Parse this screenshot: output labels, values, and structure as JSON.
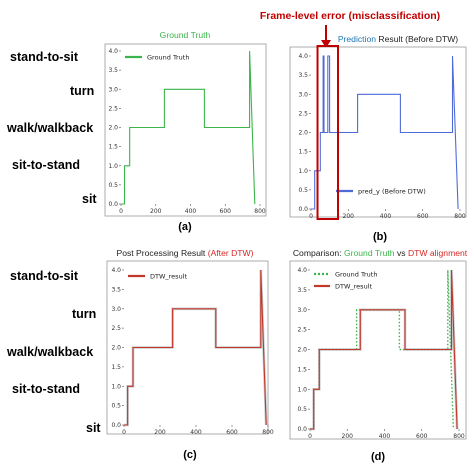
{
  "annotation": {
    "text": "Frame-level error (misclassification)",
    "color": "#c00000"
  },
  "colors": {
    "ground_truth": "#3cb44b",
    "prediction": "#4f6bd8",
    "dtw_result": "#c0392b",
    "dtw_title": "#d62728",
    "prediction_title": "#1f77b4",
    "step_gray": "#9aa0a6",
    "error_box": "#c00000"
  },
  "category_labels": [
    "stand-to-sit",
    "turn",
    "walk/walkback",
    "sit-to-stand",
    "sit"
  ],
  "chart_data": [
    {
      "panel": "a",
      "type": "line",
      "caption": "(a)",
      "title_parts": [
        {
          "text": "Ground Truth",
          "color": "#3cb44b"
        }
      ],
      "legend": "Ground Truth",
      "legend_style": "solid",
      "color": "#3cb44b",
      "ylim": [
        0,
        4
      ],
      "xlim": [
        0,
        800
      ],
      "yticks": [
        "0.0",
        "0.5",
        "1.0",
        "1.5",
        "2.0",
        "2.5",
        "3.0",
        "3.5",
        "4.0"
      ],
      "xticks": [
        "0",
        "200",
        "400",
        "600",
        "800"
      ],
      "series": [
        {
          "name": "Ground Truth",
          "x": [
            0,
            20,
            20,
            50,
            50,
            250,
            250,
            480,
            480,
            740,
            740,
            770
          ],
          "y": [
            0,
            0,
            1,
            1,
            2,
            2,
            3,
            3,
            2,
            2,
            4,
            0
          ]
        }
      ]
    },
    {
      "panel": "b",
      "type": "line",
      "caption": "(b)",
      "title_parts": [
        {
          "text": "Prediction",
          "color": "#1f77b4"
        },
        {
          "text": " Result (Before DTW)",
          "color": "#222222"
        }
      ],
      "legend": "pred_y (Before DTW)",
      "legend_style": "solid",
      "color": "#4f6bd8",
      "ylim": [
        0,
        4
      ],
      "xlim": [
        0,
        800
      ],
      "yticks": [
        "0.0",
        "0.5",
        "1.0",
        "1.5",
        "2.0",
        "2.5",
        "3.0",
        "3.5",
        "4.0"
      ],
      "xticks": [
        "0",
        "200",
        "400",
        "600",
        "800"
      ],
      "error_range_x": [
        35,
        145
      ],
      "series": [
        {
          "name": "pred_y (Before DTW)",
          "x": [
            0,
            20,
            20,
            50,
            50,
            65,
            65,
            70,
            70,
            90,
            90,
            100,
            100,
            250,
            250,
            480,
            480,
            760,
            760,
            790
          ],
          "y": [
            0,
            0,
            1,
            1,
            2,
            2,
            4,
            4,
            2,
            2,
            4,
            4,
            2,
            2,
            3,
            3,
            2,
            2,
            4,
            0
          ]
        }
      ]
    },
    {
      "panel": "c",
      "type": "line",
      "caption": "(c)",
      "title_parts": [
        {
          "text": "Post Processing Result ",
          "color": "#222222"
        },
        {
          "text": "(After DTW)",
          "color": "#d62728"
        }
      ],
      "legend": "DTW_result",
      "legend_style": "solid",
      "color": "#c0392b",
      "ylim": [
        0,
        4
      ],
      "xlim": [
        0,
        800
      ],
      "yticks": [
        "0.0",
        "0.5",
        "1.0",
        "1.5",
        "2.0",
        "2.5",
        "3.0",
        "3.5",
        "4.0"
      ],
      "xticks": [
        "0",
        "200",
        "400",
        "600",
        "800"
      ],
      "series": [
        {
          "name": "DTW_result",
          "x": [
            0,
            20,
            20,
            50,
            50,
            270,
            270,
            510,
            510,
            760,
            760,
            790
          ],
          "y": [
            0,
            0,
            1,
            1,
            2,
            2,
            3,
            3,
            2,
            2,
            4,
            0
          ]
        }
      ]
    },
    {
      "panel": "d",
      "type": "line",
      "caption": "(d)",
      "title_parts": [
        {
          "text": "Comparison: ",
          "color": "#222222"
        },
        {
          "text": "Ground Truth",
          "color": "#3cb44b"
        },
        {
          "text": " vs ",
          "color": "#222222"
        },
        {
          "text": "DTW alignment",
          "color": "#d62728"
        }
      ],
      "legend_entries": [
        {
          "name": "Ground Truth",
          "color": "#3cb44b",
          "style": "dotted"
        },
        {
          "name": "DTW_result",
          "color": "#c0392b",
          "style": "solid"
        }
      ],
      "ylim": [
        0,
        4
      ],
      "xlim": [
        0,
        800
      ],
      "yticks": [
        "0.0",
        "0.5",
        "1.0",
        "1.5",
        "2.0",
        "2.5",
        "3.0",
        "3.5",
        "4.0"
      ],
      "xticks": [
        "0",
        "200",
        "400",
        "600",
        "800"
      ],
      "series": [
        {
          "name": "Ground Truth",
          "color": "#3cb44b",
          "style": "dotted",
          "x": [
            0,
            20,
            20,
            50,
            50,
            250,
            250,
            480,
            480,
            740,
            740,
            770
          ],
          "y": [
            0,
            0,
            1,
            1,
            2,
            2,
            3,
            3,
            2,
            2,
            4,
            0
          ]
        },
        {
          "name": "DTW_result",
          "color": "#c0392b",
          "style": "solid",
          "x": [
            0,
            20,
            20,
            50,
            50,
            270,
            270,
            510,
            510,
            760,
            760,
            790
          ],
          "y": [
            0,
            0,
            1,
            1,
            2,
            2,
            3,
            3,
            2,
            2,
            4,
            0
          ]
        }
      ]
    }
  ]
}
